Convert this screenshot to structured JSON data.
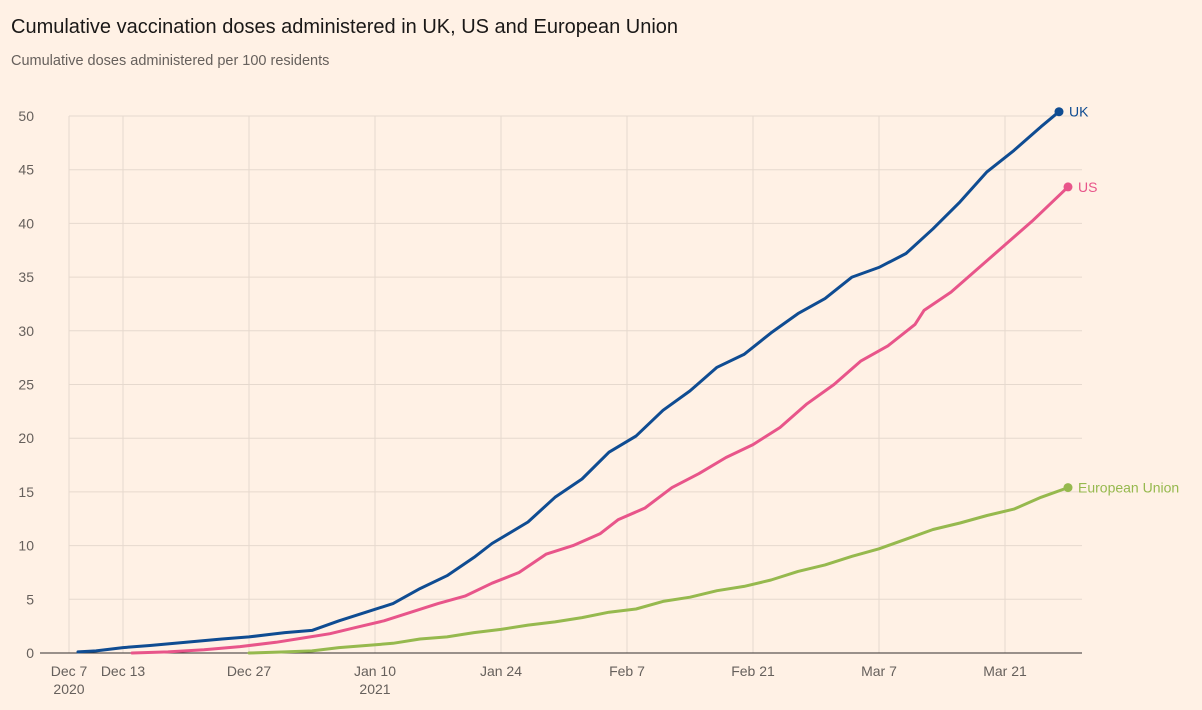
{
  "chart_data": {
    "type": "line",
    "title": "Cumulative vaccination doses administered in UK, US and European Union",
    "subtitle": "Cumulative doses administered per 100 residents",
    "ylim": [
      0,
      50
    ],
    "yticks": [
      0,
      5,
      10,
      15,
      20,
      25,
      30,
      35,
      40,
      45,
      50
    ],
    "xlim": [
      "2020-12-07",
      "2021-03-31"
    ],
    "xticks": [
      {
        "date": "2020-12-07",
        "label": "Dec 7",
        "sublabel": "2020"
      },
      {
        "date": "2020-12-13",
        "label": "Dec 13",
        "sublabel": ""
      },
      {
        "date": "2020-12-27",
        "label": "Dec 27",
        "sublabel": ""
      },
      {
        "date": "2021-01-10",
        "label": "Jan 10",
        "sublabel": "2021"
      },
      {
        "date": "2021-01-24",
        "label": "Jan 24",
        "sublabel": ""
      },
      {
        "date": "2021-02-07",
        "label": "Feb 7",
        "sublabel": ""
      },
      {
        "date": "2021-02-21",
        "label": "Feb 21",
        "sublabel": ""
      },
      {
        "date": "2021-03-07",
        "label": "Mar 7",
        "sublabel": ""
      },
      {
        "date": "2021-03-21",
        "label": "Mar 21",
        "sublabel": ""
      }
    ],
    "grid": true,
    "series": [
      {
        "name": "UK",
        "color": "#0f4c92",
        "points": [
          [
            "2020-12-08",
            0.1
          ],
          [
            "2020-12-10",
            0.2
          ],
          [
            "2020-12-13",
            0.5
          ],
          [
            "2020-12-16",
            0.7
          ],
          [
            "2020-12-20",
            1.0
          ],
          [
            "2020-12-24",
            1.3
          ],
          [
            "2020-12-27",
            1.5
          ],
          [
            "2020-12-31",
            1.9
          ],
          [
            "2021-01-03",
            2.1
          ],
          [
            "2021-01-06",
            3.0
          ],
          [
            "2021-01-09",
            3.8
          ],
          [
            "2021-01-12",
            4.6
          ],
          [
            "2021-01-15",
            6.0
          ],
          [
            "2021-01-18",
            7.2
          ],
          [
            "2021-01-21",
            8.9
          ],
          [
            "2021-01-23",
            10.2
          ],
          [
            "2021-01-27",
            12.2
          ],
          [
            "2021-01-30",
            14.5
          ],
          [
            "2021-02-02",
            16.2
          ],
          [
            "2021-02-05",
            18.7
          ],
          [
            "2021-02-08",
            20.2
          ],
          [
            "2021-02-11",
            22.6
          ],
          [
            "2021-02-14",
            24.4
          ],
          [
            "2021-02-17",
            26.6
          ],
          [
            "2021-02-20",
            27.8
          ],
          [
            "2021-02-23",
            29.8
          ],
          [
            "2021-02-26",
            31.6
          ],
          [
            "2021-03-01",
            33.0
          ],
          [
            "2021-03-04",
            35.0
          ],
          [
            "2021-03-07",
            35.9
          ],
          [
            "2021-03-10",
            37.2
          ],
          [
            "2021-03-13",
            39.5
          ],
          [
            "2021-03-16",
            42.0
          ],
          [
            "2021-03-19",
            44.8
          ],
          [
            "2021-03-22",
            46.8
          ],
          [
            "2021-03-25",
            49.0
          ],
          [
            "2021-03-27",
            50.4
          ]
        ]
      },
      {
        "name": "US",
        "color": "#e8558a",
        "points": [
          [
            "2020-12-14",
            0.0
          ],
          [
            "2020-12-18",
            0.1
          ],
          [
            "2020-12-22",
            0.3
          ],
          [
            "2020-12-26",
            0.6
          ],
          [
            "2020-12-30",
            1.0
          ],
          [
            "2021-01-02",
            1.4
          ],
          [
            "2021-01-05",
            1.8
          ],
          [
            "2021-01-08",
            2.4
          ],
          [
            "2021-01-11",
            3.0
          ],
          [
            "2021-01-14",
            3.8
          ],
          [
            "2021-01-17",
            4.6
          ],
          [
            "2021-01-20",
            5.3
          ],
          [
            "2021-01-23",
            6.5
          ],
          [
            "2021-01-26",
            7.5
          ],
          [
            "2021-01-29",
            9.2
          ],
          [
            "2021-02-01",
            10.0
          ],
          [
            "2021-02-04",
            11.1
          ],
          [
            "2021-02-06",
            12.4
          ],
          [
            "2021-02-09",
            13.5
          ],
          [
            "2021-02-12",
            15.4
          ],
          [
            "2021-02-15",
            16.7
          ],
          [
            "2021-02-18",
            18.2
          ],
          [
            "2021-02-21",
            19.4
          ],
          [
            "2021-02-24",
            21.0
          ],
          [
            "2021-02-27",
            23.2
          ],
          [
            "2021-03-02",
            25.0
          ],
          [
            "2021-03-05",
            27.2
          ],
          [
            "2021-03-08",
            28.6
          ],
          [
            "2021-03-11",
            30.6
          ],
          [
            "2021-03-12",
            31.9
          ],
          [
            "2021-03-15",
            33.6
          ],
          [
            "2021-03-18",
            35.8
          ],
          [
            "2021-03-21",
            38.0
          ],
          [
            "2021-03-24",
            40.2
          ],
          [
            "2021-03-28",
            43.4
          ]
        ]
      },
      {
        "name": "European Union",
        "color": "#96b94e",
        "points": [
          [
            "2020-12-27",
            0.0
          ],
          [
            "2020-12-31",
            0.1
          ],
          [
            "2021-01-03",
            0.2
          ],
          [
            "2021-01-06",
            0.5
          ],
          [
            "2021-01-09",
            0.7
          ],
          [
            "2021-01-12",
            0.9
          ],
          [
            "2021-01-15",
            1.3
          ],
          [
            "2021-01-18",
            1.5
          ],
          [
            "2021-01-21",
            1.9
          ],
          [
            "2021-01-24",
            2.2
          ],
          [
            "2021-01-27",
            2.6
          ],
          [
            "2021-01-30",
            2.9
          ],
          [
            "2021-02-02",
            3.3
          ],
          [
            "2021-02-05",
            3.8
          ],
          [
            "2021-02-08",
            4.1
          ],
          [
            "2021-02-11",
            4.8
          ],
          [
            "2021-02-14",
            5.2
          ],
          [
            "2021-02-17",
            5.8
          ],
          [
            "2021-02-20",
            6.2
          ],
          [
            "2021-02-23",
            6.8
          ],
          [
            "2021-02-26",
            7.6
          ],
          [
            "2021-03-01",
            8.2
          ],
          [
            "2021-03-04",
            9.0
          ],
          [
            "2021-03-07",
            9.7
          ],
          [
            "2021-03-10",
            10.6
          ],
          [
            "2021-03-13",
            11.5
          ],
          [
            "2021-03-16",
            12.1
          ],
          [
            "2021-03-19",
            12.8
          ],
          [
            "2021-03-22",
            13.4
          ],
          [
            "2021-03-25",
            14.5
          ],
          [
            "2021-03-28",
            15.4
          ]
        ]
      }
    ]
  }
}
